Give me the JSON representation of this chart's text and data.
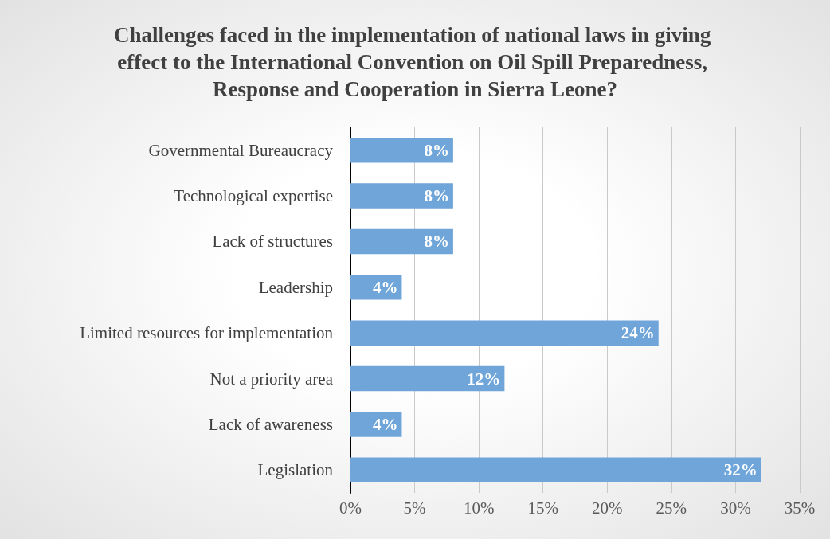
{
  "chart_data": {
    "type": "bar",
    "orientation": "horizontal",
    "title": "Challenges faced in the implementation of national laws in giving effect to the International Convention on Oil Spill Preparedness, Response and Cooperation in Sierra Leone?",
    "categories": [
      "Governmental Bureaucracy",
      "Technological expertise",
      "Lack of structures",
      "Leadership",
      "Limited resources for implementation",
      "Not a priority area",
      "Lack of awareness",
      "Legislation"
    ],
    "values": [
      8,
      8,
      8,
      4,
      24,
      12,
      4,
      32
    ],
    "value_labels": [
      "8%",
      "8%",
      "8%",
      "4%",
      "24%",
      "12%",
      "4%",
      "32%"
    ],
    "color": "#6fa5d9",
    "xlim": [
      0,
      35
    ],
    "xticks": [
      {
        "value": 0,
        "label": "0%"
      },
      {
        "value": 5,
        "label": "5%"
      },
      {
        "value": 10,
        "label": "10%"
      },
      {
        "value": 15,
        "label": "15%"
      },
      {
        "value": 20,
        "label": "20%"
      },
      {
        "value": 25,
        "label": "25%"
      },
      {
        "value": 30,
        "label": "30%"
      },
      {
        "value": 35,
        "label": "35%"
      }
    ],
    "grid": true
  }
}
